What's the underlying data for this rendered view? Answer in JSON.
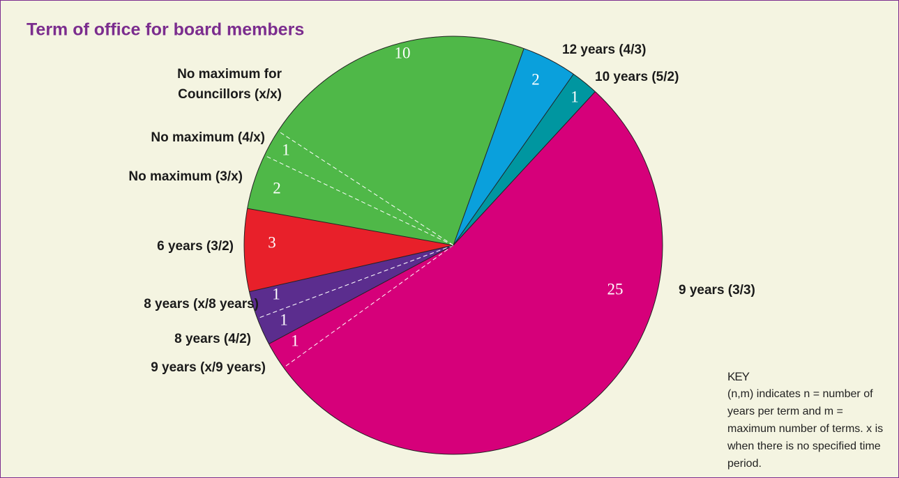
{
  "chart_data": {
    "type": "pie",
    "title": "Term of office for board members",
    "categories": [
      "9 years (3/3)",
      "9 years (x/9 years)",
      "8 years (4/2)",
      "8 years (x/8 years)",
      "6 years (3/2)",
      "No maximum (3/x)",
      "No maximum (4/x)",
      "No maximum for Councillors (x/x)",
      "12 years (4/3)",
      "10 years (5/2)"
    ],
    "values": [
      25,
      1,
      1,
      1,
      3,
      2,
      1,
      10,
      2,
      1
    ],
    "colors": [
      "#d6007a",
      "#d6007a",
      "#5b2d8e",
      "#5b2d8e",
      "#e8202a",
      "#4fb848",
      "#4fb848",
      "#4fb848",
      "#0aa0dc",
      "#0096a0"
    ],
    "key": {
      "title": "KEY",
      "text": "(n,m) indicates n = number of years per term and m = maximum number of terms. x is when there is no specified time period."
    }
  }
}
